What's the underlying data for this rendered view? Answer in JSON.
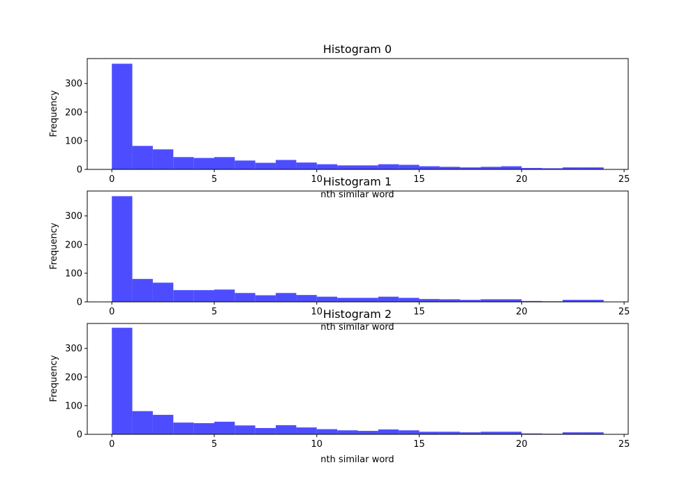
{
  "chart_data": [
    {
      "type": "bar",
      "title": "Histogram 0",
      "xlabel": "nth similar word",
      "ylabel": "Frequency",
      "bin_edges": [
        0,
        1,
        2,
        3,
        4,
        5,
        6,
        7,
        8,
        9,
        10,
        11,
        12,
        13,
        14,
        15,
        16,
        17,
        18,
        19,
        20,
        21,
        22,
        23,
        24
      ],
      "values": [
        369,
        82,
        70,
        43,
        40,
        43,
        31,
        23,
        33,
        24,
        18,
        14,
        14,
        18,
        16,
        11,
        9,
        7,
        9,
        11,
        5,
        4,
        7,
        7
      ],
      "xticks": [
        "0",
        "5",
        "10",
        "15",
        "20",
        "25"
      ],
      "yticks": [
        "0",
        "100",
        "200",
        "300"
      ],
      "xlim": [
        -1.2,
        25.2
      ],
      "ylim": [
        0,
        387
      ],
      "color": "#4d4dff"
    },
    {
      "type": "bar",
      "title": "Histogram 1",
      "xlabel": "nth similar word",
      "ylabel": "Frequency",
      "bin_edges": [
        0,
        1,
        2,
        3,
        4,
        5,
        6,
        7,
        8,
        9,
        10,
        11,
        12,
        13,
        14,
        15,
        16,
        17,
        18,
        19,
        20,
        21,
        22,
        23,
        24
      ],
      "values": [
        369,
        80,
        67,
        41,
        41,
        43,
        31,
        23,
        31,
        24,
        18,
        14,
        14,
        18,
        14,
        10,
        9,
        7,
        9,
        9,
        3,
        2,
        7,
        7
      ],
      "xticks": [
        "0",
        "5",
        "10",
        "15",
        "20",
        "25"
      ],
      "yticks": [
        "0",
        "100",
        "200",
        "300"
      ],
      "xlim": [
        -1.2,
        25.2
      ],
      "ylim": [
        0,
        387
      ],
      "color": "#4d4dff"
    },
    {
      "type": "bar",
      "title": "Histogram 2",
      "xlabel": "nth similar word",
      "ylabel": "Frequency",
      "bin_edges": [
        0,
        1,
        2,
        3,
        4,
        5,
        6,
        7,
        8,
        9,
        10,
        11,
        12,
        13,
        14,
        15,
        16,
        17,
        18,
        19,
        20,
        21,
        22,
        23,
        24
      ],
      "values": [
        372,
        81,
        68,
        41,
        39,
        44,
        31,
        22,
        32,
        24,
        18,
        14,
        12,
        17,
        14,
        9,
        9,
        7,
        9,
        9,
        3,
        2,
        7,
        7
      ],
      "xticks": [
        "0",
        "5",
        "10",
        "15",
        "20",
        "25"
      ],
      "yticks": [
        "0",
        "100",
        "200",
        "300"
      ],
      "xlim": [
        -1.2,
        25.2
      ],
      "ylim": [
        0,
        387
      ],
      "color": "#4d4dff"
    }
  ]
}
